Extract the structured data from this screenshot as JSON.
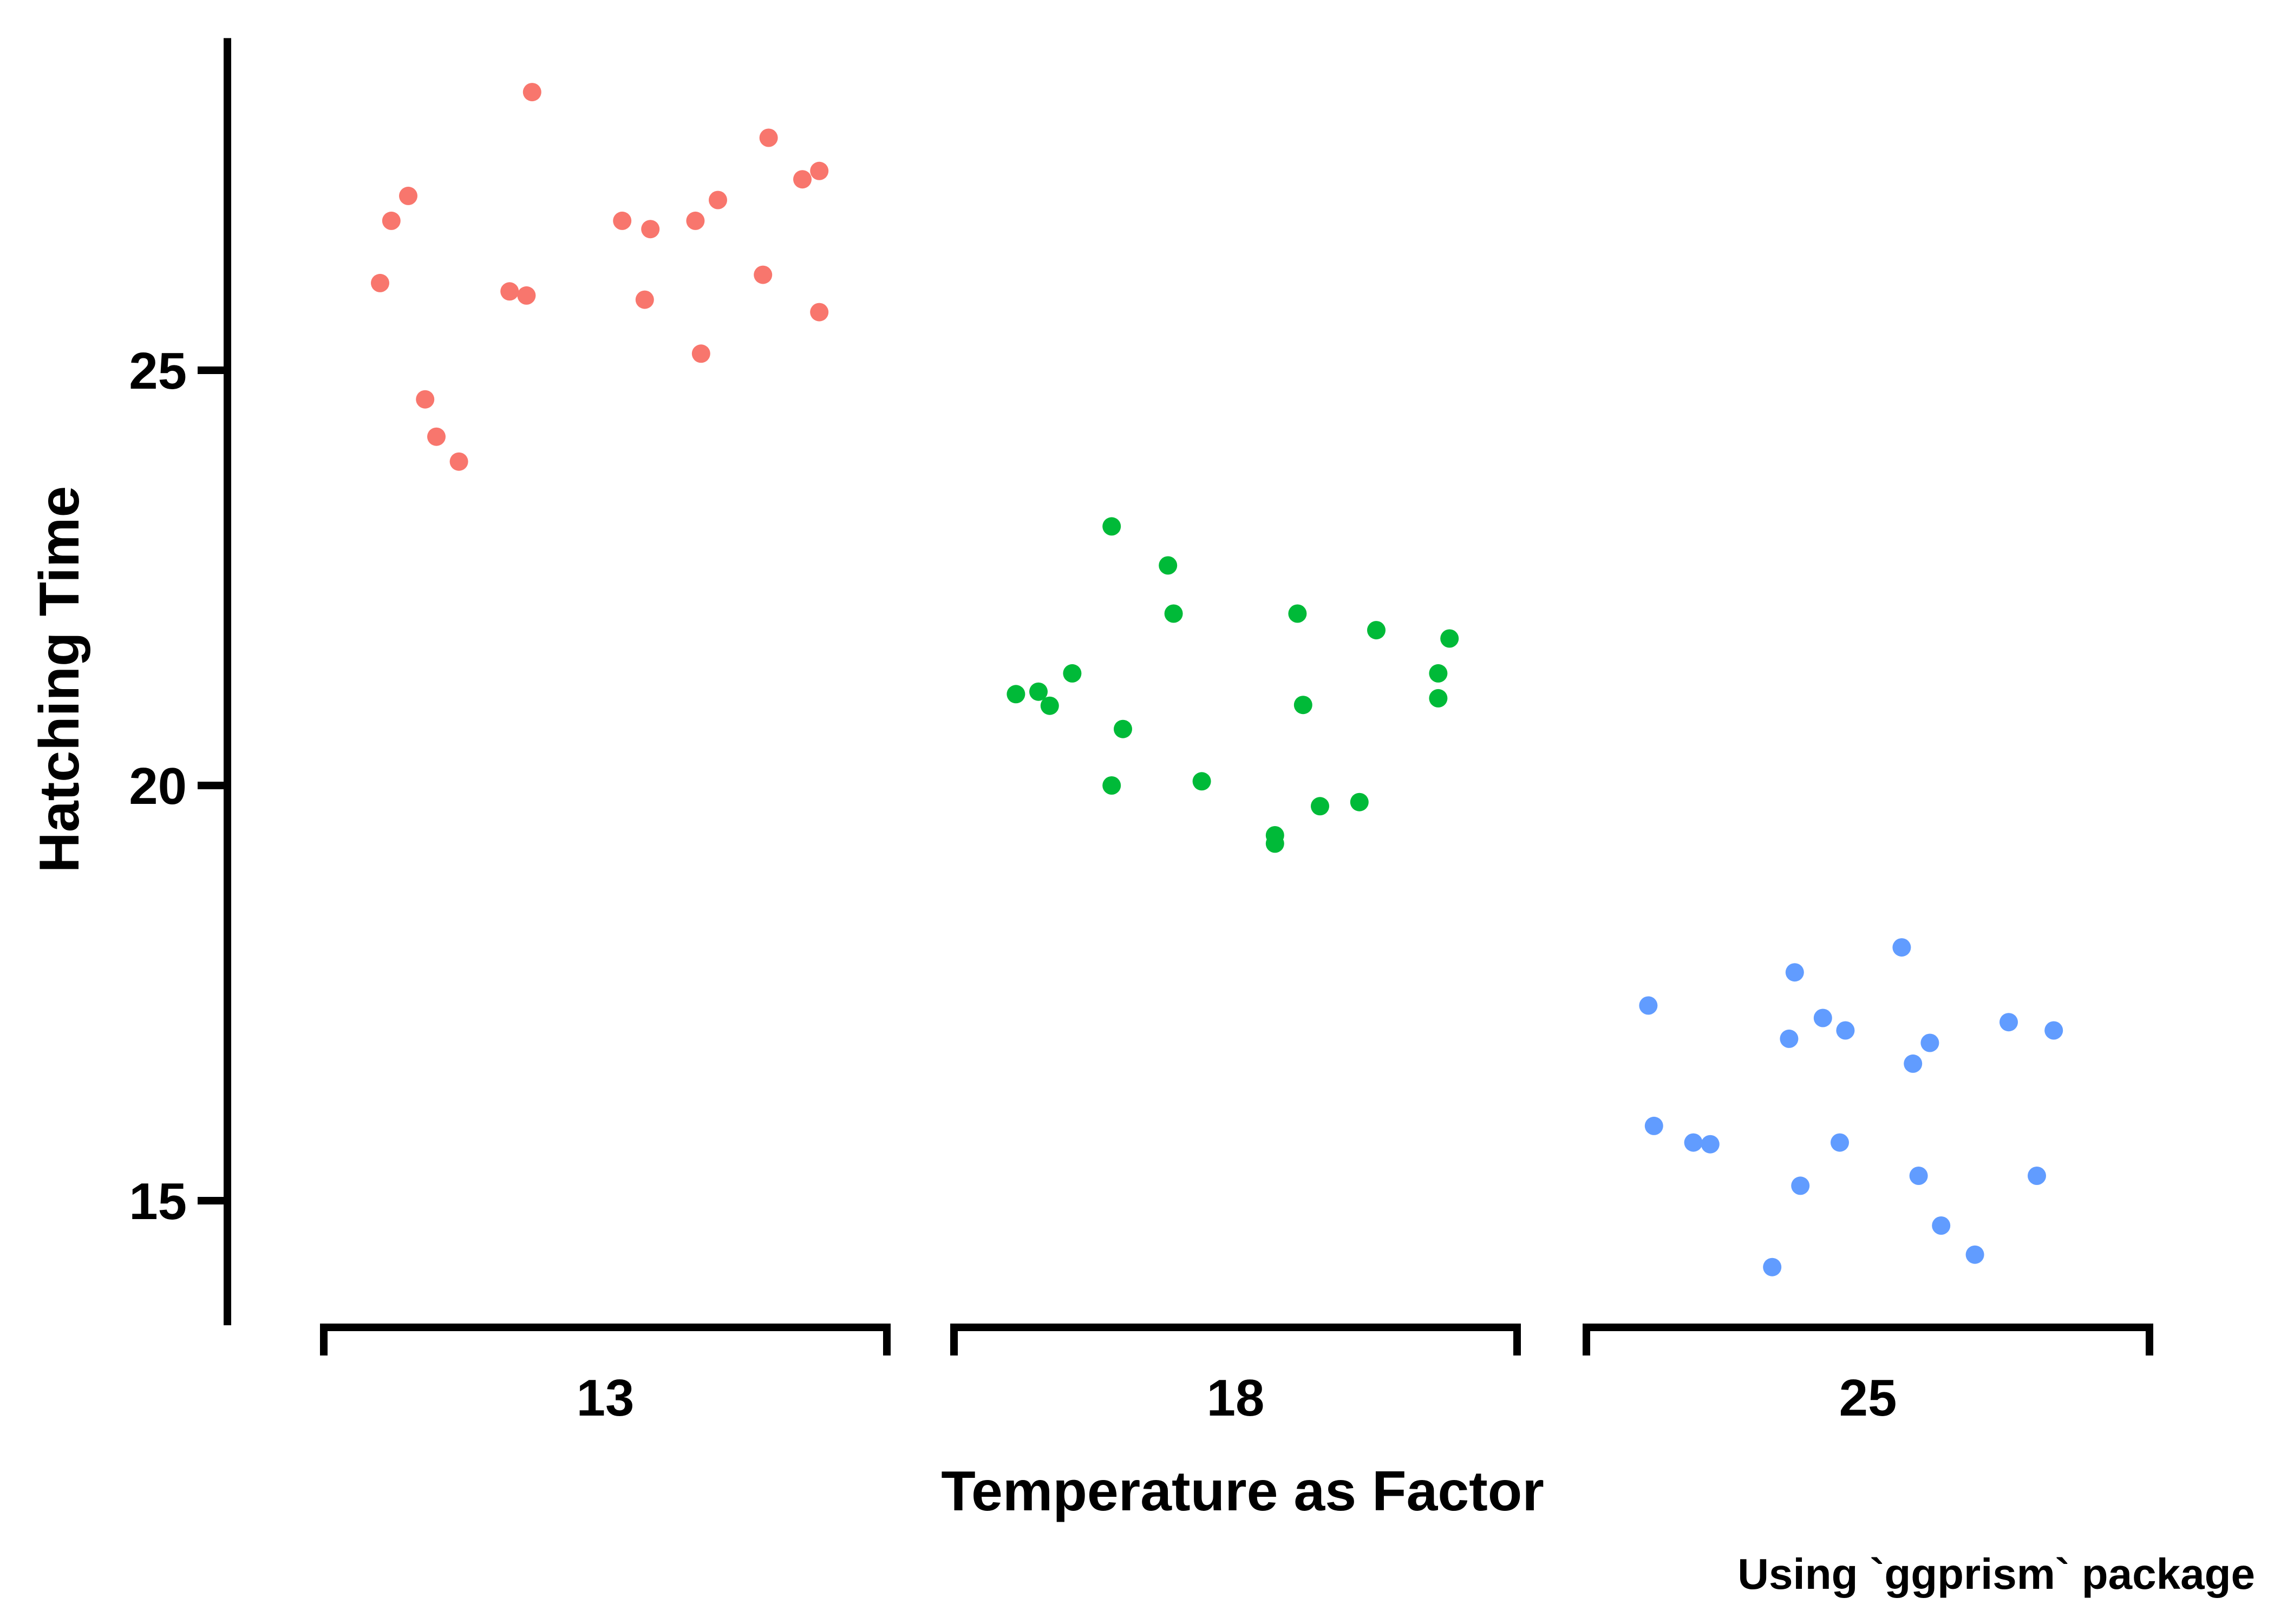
{
  "chart_data": {
    "type": "scatter",
    "title": "",
    "xlabel": "Temperature as Factor",
    "ylabel": "Hatching Time",
    "caption": "Using `ggprism` package",
    "categories": [
      "13",
      "18",
      "25"
    ],
    "ylim": [
      13.5,
      29.0
    ],
    "yticks": [
      15,
      20,
      25
    ],
    "grid": false,
    "legend": "none",
    "series": [
      {
        "category": "13",
        "color": "#F8766D",
        "points": [
          {
            "x": 12.6,
            "y": 26.05
          },
          {
            "x": 12.62,
            "y": 26.8
          },
          {
            "x": 12.65,
            "y": 27.1
          },
          {
            "x": 12.68,
            "y": 24.65
          },
          {
            "x": 12.7,
            "y": 24.2
          },
          {
            "x": 12.74,
            "y": 23.9
          },
          {
            "x": 12.83,
            "y": 25.95
          },
          {
            "x": 12.86,
            "y": 25.9
          },
          {
            "x": 12.87,
            "y": 28.35
          },
          {
            "x": 13.03,
            "y": 26.8
          },
          {
            "x": 13.07,
            "y": 25.85
          },
          {
            "x": 13.08,
            "y": 26.7
          },
          {
            "x": 13.16,
            "y": 26.8
          },
          {
            "x": 13.17,
            "y": 25.2
          },
          {
            "x": 13.2,
            "y": 27.05
          },
          {
            "x": 13.28,
            "y": 26.15
          },
          {
            "x": 13.29,
            "y": 27.8
          },
          {
            "x": 13.35,
            "y": 27.3
          },
          {
            "x": 13.38,
            "y": 27.4
          },
          {
            "x": 13.38,
            "y": 25.7
          }
        ]
      },
      {
        "category": "18",
        "color": "#00BA38",
        "points": [
          {
            "x": 17.61,
            "y": 21.1
          },
          {
            "x": 17.65,
            "y": 21.13
          },
          {
            "x": 17.67,
            "y": 20.96
          },
          {
            "x": 17.71,
            "y": 21.35
          },
          {
            "x": 17.78,
            "y": 23.12
          },
          {
            "x": 17.78,
            "y": 20.0
          },
          {
            "x": 17.8,
            "y": 20.68
          },
          {
            "x": 17.88,
            "y": 22.65
          },
          {
            "x": 17.89,
            "y": 22.07
          },
          {
            "x": 17.94,
            "y": 20.05
          },
          {
            "x": 18.07,
            "y": 19.4
          },
          {
            "x": 18.07,
            "y": 19.3
          },
          {
            "x": 18.11,
            "y": 22.07
          },
          {
            "x": 18.12,
            "y": 20.97
          },
          {
            "x": 18.15,
            "y": 19.75
          },
          {
            "x": 18.22,
            "y": 19.8
          },
          {
            "x": 18.25,
            "y": 21.87
          },
          {
            "x": 18.36,
            "y": 21.35
          },
          {
            "x": 18.36,
            "y": 21.05
          },
          {
            "x": 18.38,
            "y": 21.77
          }
        ]
      },
      {
        "category": "25",
        "color": "#619CFF",
        "points": [
          {
            "x": 24.61,
            "y": 17.35
          },
          {
            "x": 24.62,
            "y": 15.9
          },
          {
            "x": 24.69,
            "y": 15.7
          },
          {
            "x": 24.72,
            "y": 15.68
          },
          {
            "x": 24.83,
            "y": 14.2
          },
          {
            "x": 24.86,
            "y": 16.95
          },
          {
            "x": 24.87,
            "y": 17.75
          },
          {
            "x": 24.88,
            "y": 15.18
          },
          {
            "x": 24.92,
            "y": 17.2
          },
          {
            "x": 24.95,
            "y": 15.7
          },
          {
            "x": 24.96,
            "y": 17.05
          },
          {
            "x": 25.06,
            "y": 18.05
          },
          {
            "x": 25.08,
            "y": 16.65
          },
          {
            "x": 25.09,
            "y": 15.3
          },
          {
            "x": 25.11,
            "y": 16.9
          },
          {
            "x": 25.13,
            "y": 14.7
          },
          {
            "x": 25.19,
            "y": 14.35
          },
          {
            "x": 25.25,
            "y": 17.15
          },
          {
            "x": 25.3,
            "y": 15.3
          },
          {
            "x": 25.33,
            "y": 17.05
          }
        ]
      }
    ]
  }
}
